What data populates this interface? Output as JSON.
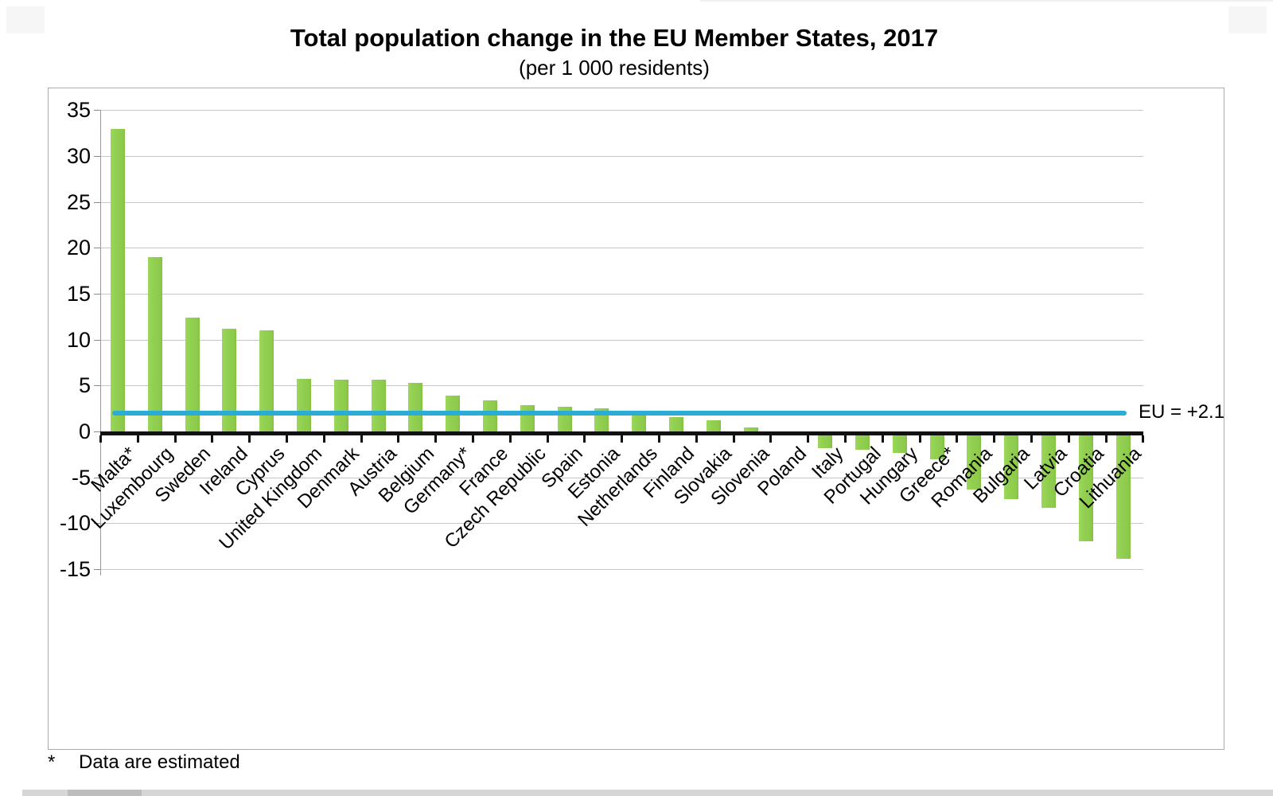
{
  "page": {
    "title": "Total population change in the EU Member States, 2017",
    "subtitle": "(per 1 000 residents)"
  },
  "chart_data": {
    "type": "bar",
    "title": "Total population change in the EU Member States, 2017",
    "subtitle": "(per 1 000 residents)",
    "categories": [
      "Malta*",
      "Luxembourg",
      "Sweden",
      "Ireland",
      "Cyprus",
      "United Kingdom",
      "Denmark",
      "Austria",
      "Belgium",
      "Germany*",
      "France",
      "Czech Republic",
      "Spain",
      "Estonia",
      "Netherlands",
      "Finland",
      "Slovakia",
      "Slovenia",
      "Poland",
      "Italy",
      "Portugal",
      "Hungary",
      "Greece*",
      "Romania",
      "Bulgaria",
      "Latvia",
      "Croatia",
      "Lithuania"
    ],
    "values": [
      33.0,
      19.0,
      12.4,
      11.2,
      11.0,
      5.7,
      5.6,
      5.6,
      5.3,
      3.9,
      3.4,
      2.9,
      2.7,
      2.5,
      1.7,
      1.6,
      1.2,
      0.4,
      0.0,
      -1.8,
      -2.0,
      -2.3,
      -3.0,
      -6.3,
      -7.4,
      -8.3,
      -12.0,
      -13.9
    ],
    "ylim": [
      -15,
      35
    ],
    "y_ticks": [
      35,
      30,
      25,
      20,
      15,
      10,
      5,
      0,
      -5,
      -10,
      -15
    ],
    "grid": "horizontal",
    "bar_color": "#92D050",
    "reference_line": {
      "label": "EU = +2.1",
      "value": 2.1,
      "color": "#2BACD7"
    }
  },
  "footnote": {
    "marker": "*",
    "text": "Data are estimated"
  }
}
